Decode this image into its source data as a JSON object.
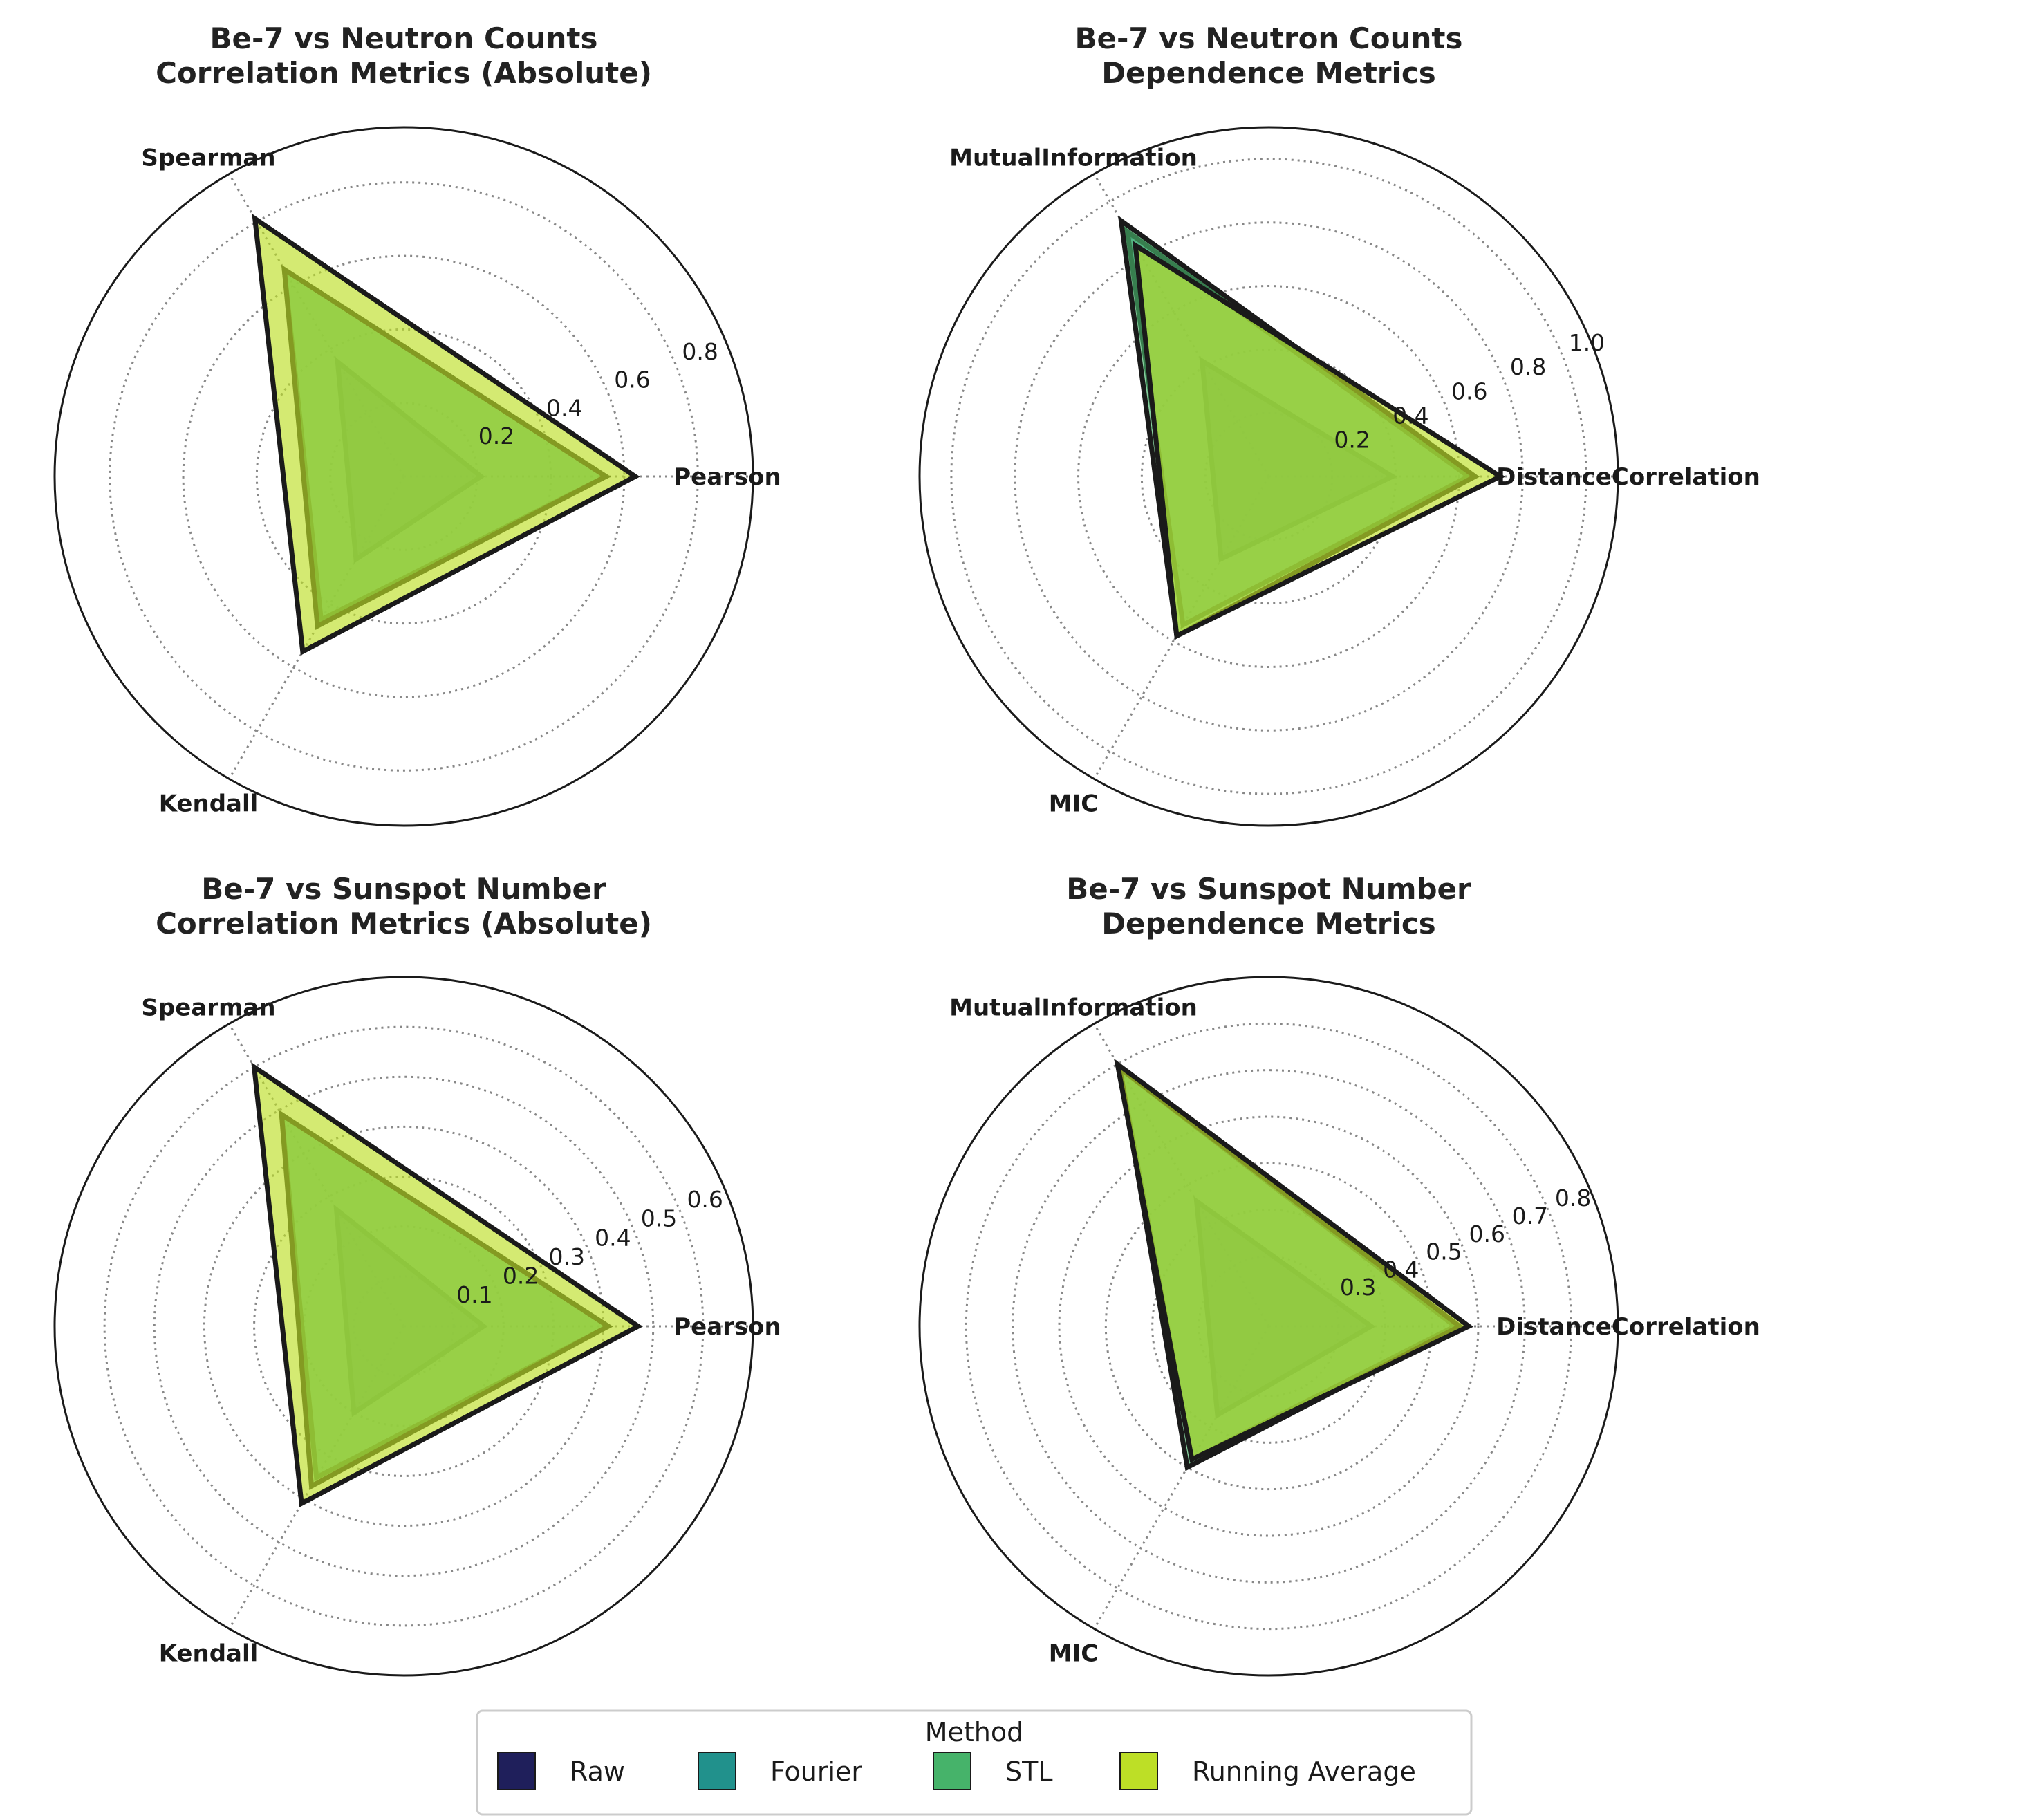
{
  "colors": {
    "Raw": "#1f1f5b",
    "Fourier": "#21918c",
    "STL": "#46b36a",
    "Running Average": "#bddf26",
    "outline": "#1a1a1a",
    "grid": "#888888"
  },
  "legend": {
    "title": "Method",
    "entries": [
      "Raw",
      "Fourier",
      "STL",
      "Running Average"
    ]
  },
  "chart_data": [
    {
      "type": "radar",
      "title": "Be-7 vs Neutron Counts\nCorrelation Metrics (Absolute)",
      "axes": [
        "Pearson",
        "Spearman",
        "Kendall"
      ],
      "rlim": [
        0,
        0.95
      ],
      "rticks": [
        0.2,
        0.4,
        0.6,
        0.8
      ],
      "rtick_labels": [
        "0.2",
        "0.4",
        "0.6",
        "0.8"
      ],
      "grid": true,
      "series": [
        {
          "name": "Raw",
          "values": [
            0.21,
            0.36,
            0.26
          ]
        },
        {
          "name": "Fourier",
          "values": [
            0.55,
            0.65,
            0.45
          ]
        },
        {
          "name": "STL",
          "values": [
            0.55,
            0.65,
            0.47
          ]
        },
        {
          "name": "Running Average",
          "values": [
            0.63,
            0.81,
            0.55
          ]
        }
      ]
    },
    {
      "type": "radar",
      "title": "Be-7 vs Neutron Counts\nDependence Metrics",
      "axes": [
        "DistanceCorrelation",
        "MutualInformation",
        "MIC"
      ],
      "rlim": [
        0,
        1.1
      ],
      "rticks": [
        0.2,
        0.4,
        0.6,
        0.8,
        1.0
      ],
      "rtick_labels": [
        "0.2",
        "0.4",
        "0.6",
        "0.8",
        "1.0"
      ],
      "grid": true,
      "series": [
        {
          "name": "Raw",
          "values": [
            0.39,
            0.42,
            0.3
          ]
        },
        {
          "name": "Fourier",
          "values": [
            0.63,
            0.89,
            0.54
          ]
        },
        {
          "name": "STL",
          "values": [
            0.65,
            0.93,
            0.58
          ]
        },
        {
          "name": "Running Average",
          "values": [
            0.73,
            0.84,
            0.58
          ]
        }
      ]
    },
    {
      "type": "radar",
      "title": "Be-7 vs Sunspot Number\nCorrelation Metrics (Absolute)",
      "axes": [
        "Pearson",
        "Spearman",
        "Kendall"
      ],
      "rlim": [
        0,
        0.7
      ],
      "rticks": [
        0.1,
        0.2,
        0.3,
        0.4,
        0.5,
        0.6
      ],
      "rtick_labels": [
        "0.1",
        "0.2",
        "0.3",
        "0.4",
        "0.5",
        "0.6"
      ],
      "grid": true,
      "series": [
        {
          "name": "Raw",
          "values": [
            0.16,
            0.27,
            0.2
          ]
        },
        {
          "name": "Fourier",
          "values": [
            0.41,
            0.49,
            0.35
          ]
        },
        {
          "name": "STL",
          "values": [
            0.41,
            0.49,
            0.37
          ]
        },
        {
          "name": "Running Average",
          "values": [
            0.47,
            0.6,
            0.41
          ]
        }
      ]
    },
    {
      "type": "radar",
      "title": "Be-7 vs Sunspot Number\nDependence Metrics",
      "axes": [
        "DistanceCorrelation",
        "MutualInformation",
        "MIC"
      ],
      "rlim": [
        0.15,
        0.9
      ],
      "rticks": [
        0.3,
        0.4,
        0.5,
        0.6,
        0.7,
        0.8
      ],
      "rtick_labels": [
        "0.3",
        "0.4",
        "0.5",
        "0.6",
        "0.7",
        "0.8"
      ],
      "grid": true,
      "series": [
        {
          "name": "Raw",
          "values": [
            0.37,
            0.46,
            0.37
          ]
        },
        {
          "name": "Fourier",
          "values": [
            0.55,
            0.79,
            0.48
          ]
        },
        {
          "name": "STL",
          "values": [
            0.56,
            0.79,
            0.5
          ]
        },
        {
          "name": "Running Average",
          "values": [
            0.58,
            0.8,
            0.48
          ]
        }
      ]
    }
  ]
}
